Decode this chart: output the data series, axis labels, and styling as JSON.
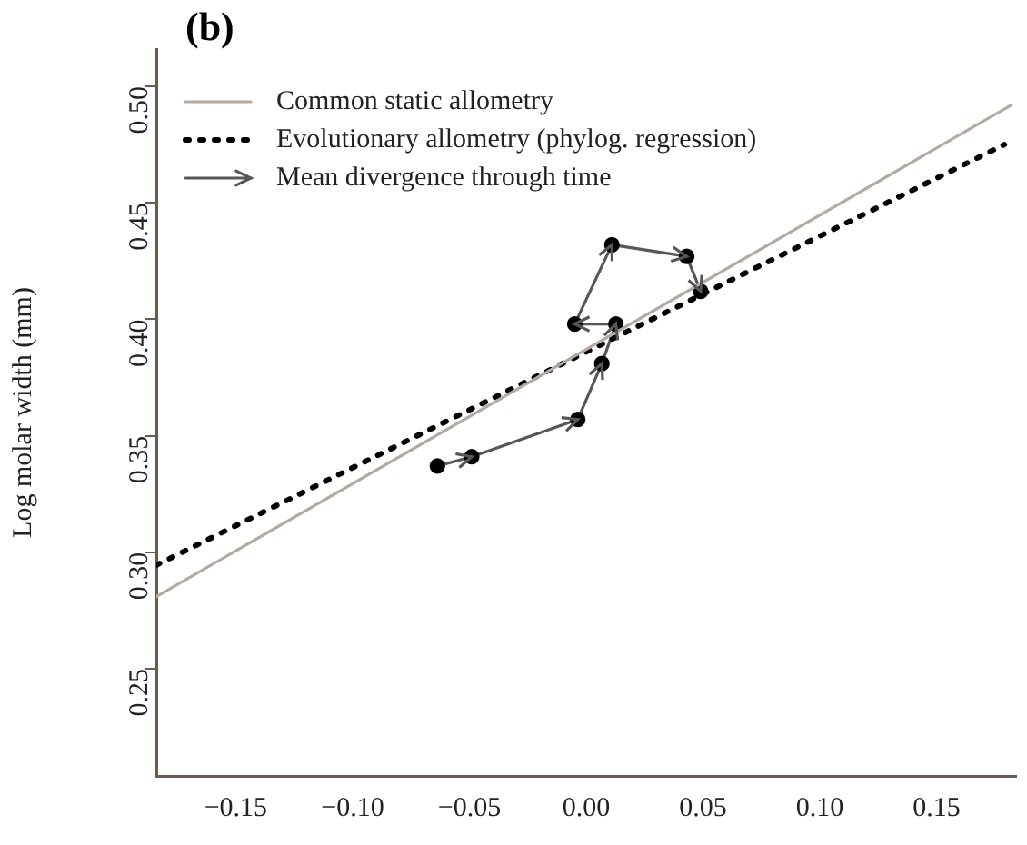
{
  "chart_data": {
    "type": "line",
    "title": "(b)",
    "ylabel": "Log molar width (mm)",
    "xlim": [
      -0.184,
      0.184
    ],
    "xticks": [
      {
        "value": -0.15,
        "label": "−0.15"
      },
      {
        "value": -0.1,
        "label": "−0.10"
      },
      {
        "value": -0.05,
        "label": "−0.05"
      },
      {
        "value": 0,
        "label": "0.00"
      },
      {
        "value": 0.05,
        "label": "0.05"
      },
      {
        "value": 0.1,
        "label": "0.10"
      },
      {
        "value": 0.15,
        "label": "0.15"
      }
    ],
    "ylim": [
      0.204,
      0.516
    ],
    "yticks": [
      {
        "value": 0.25,
        "label": "0.25"
      },
      {
        "value": 0.3,
        "label": "0.30"
      },
      {
        "value": 0.35,
        "label": "0.35"
      },
      {
        "value": 0.4,
        "label": "0.40"
      },
      {
        "value": 0.45,
        "label": "0.45"
      },
      {
        "value": 0.5,
        "label": "0.50"
      }
    ],
    "grid": false,
    "legend": "top left",
    "series": [
      {
        "name": "Common static allometry",
        "color": "#b5a9a2",
        "line_style": "solid",
        "marker": "none",
        "x": [
          -0.184,
          0.182
        ],
        "values": [
          0.281,
          0.492
        ]
      },
      {
        "name": "Evolutionary allometry (phylog. regression)",
        "color": "#000000",
        "line_style": "dotted",
        "marker": "none",
        "x": [
          -0.184,
          0.179
        ],
        "values": [
          0.2945,
          0.475
        ]
      },
      {
        "name": "Mean divergence through time",
        "color": "#5a5656",
        "line_style": "solid",
        "marker": "circle",
        "x": [
          -0.0637,
          -0.049,
          -0.0036,
          0.0067,
          0.0127,
          -0.0049,
          0.011,
          0.043,
          0.049
        ],
        "values": [
          0.337,
          0.341,
          0.357,
          0.381,
          0.398,
          0.398,
          0.432,
          0.427,
          0.412
        ]
      }
    ]
  }
}
